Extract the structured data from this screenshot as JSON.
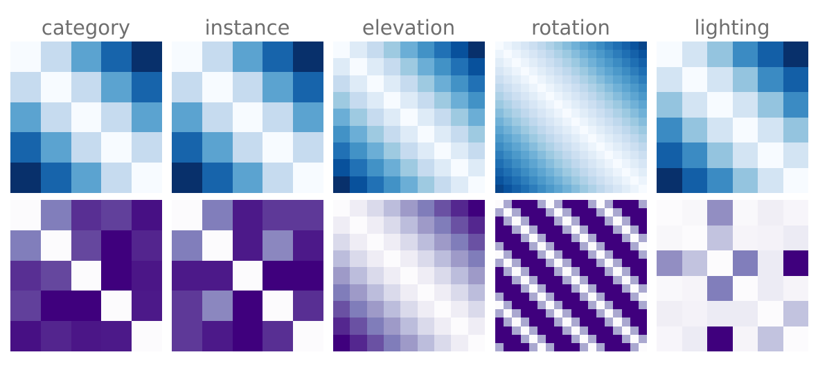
{
  "chart_data": {
    "type": "heatmap",
    "titles": [
      "category",
      "instance",
      "elevation",
      "rotation",
      "lighting"
    ],
    "colormaps": {
      "top_row": "Blues",
      "bottom_row": "Purples"
    },
    "panels": [
      {
        "row": 0,
        "col": 0,
        "title": "category",
        "colormap": "Blues",
        "size": 5,
        "matrix": [
          [
            0.0,
            0.25,
            0.55,
            0.8,
            1.0
          ],
          [
            0.25,
            0.0,
            0.25,
            0.55,
            0.8
          ],
          [
            0.55,
            0.25,
            0.0,
            0.25,
            0.55
          ],
          [
            0.8,
            0.55,
            0.25,
            0.0,
            0.25
          ],
          [
            1.0,
            0.8,
            0.55,
            0.25,
            0.0
          ]
        ]
      },
      {
        "row": 0,
        "col": 1,
        "title": "instance",
        "colormap": "Blues",
        "size": 5,
        "matrix": [
          [
            0.0,
            0.25,
            0.55,
            0.8,
            1.0
          ],
          [
            0.25,
            0.0,
            0.25,
            0.55,
            0.8
          ],
          [
            0.55,
            0.25,
            0.0,
            0.25,
            0.55
          ],
          [
            0.8,
            0.55,
            0.25,
            0.0,
            0.25
          ],
          [
            1.0,
            0.8,
            0.55,
            0.25,
            0.0
          ]
        ]
      },
      {
        "row": 0,
        "col": 2,
        "title": "elevation",
        "colormap": "Blues",
        "size": 9,
        "pattern": "abs_diff_scaled",
        "scale": 1.0
      },
      {
        "row": 0,
        "col": 3,
        "title": "rotation",
        "colormap": "Blues",
        "size": 18,
        "pattern": "abs_diff_scaled",
        "scale": 0.92
      },
      {
        "row": 0,
        "col": 4,
        "title": "lighting",
        "colormap": "Blues",
        "size": 6,
        "matrix": [
          [
            0.0,
            0.18,
            0.4,
            0.65,
            0.82,
            1.0
          ],
          [
            0.18,
            0.0,
            0.18,
            0.4,
            0.65,
            0.82
          ],
          [
            0.4,
            0.18,
            0.0,
            0.18,
            0.4,
            0.65
          ],
          [
            0.65,
            0.4,
            0.18,
            0.0,
            0.18,
            0.4
          ],
          [
            0.82,
            0.65,
            0.4,
            0.18,
            0.0,
            0.18
          ],
          [
            1.0,
            0.82,
            0.65,
            0.4,
            0.18,
            0.0
          ]
        ]
      },
      {
        "row": 1,
        "col": 0,
        "title": "category",
        "colormap": "Purples",
        "size": 5,
        "matrix": [
          [
            0.0,
            0.62,
            0.85,
            0.8,
            0.95
          ],
          [
            0.62,
            0.0,
            0.78,
            1.0,
            0.88
          ],
          [
            0.85,
            0.78,
            0.0,
            1.0,
            0.93
          ],
          [
            0.8,
            1.0,
            1.0,
            0.0,
            0.92
          ],
          [
            0.95,
            0.88,
            0.93,
            0.92,
            0.0
          ]
        ]
      },
      {
        "row": 1,
        "col": 1,
        "title": "instance",
        "colormap": "Purples",
        "size": 5,
        "matrix": [
          [
            0.0,
            0.62,
            0.92,
            0.82,
            0.82
          ],
          [
            0.62,
            0.0,
            0.92,
            0.58,
            0.92
          ],
          [
            0.92,
            0.92,
            0.0,
            1.0,
            1.0
          ],
          [
            0.82,
            0.58,
            1.0,
            0.0,
            0.85
          ],
          [
            0.82,
            0.92,
            1.0,
            0.85,
            0.0
          ]
        ]
      },
      {
        "row": 1,
        "col": 2,
        "title": "elevation",
        "colormap": "Purples",
        "size": 9,
        "pattern": "abs_diff_scaled",
        "scale": 1.0
      },
      {
        "row": 1,
        "col": 3,
        "title": "rotation",
        "colormap": "Purples",
        "size": 18,
        "pattern": "periodic_band",
        "period": 6
      },
      {
        "row": 1,
        "col": 4,
        "title": "lighting",
        "colormap": "Purples",
        "size": 6,
        "matrix": [
          [
            0.0,
            0.04,
            0.55,
            0.03,
            0.12,
            0.05
          ],
          [
            0.04,
            0.0,
            0.35,
            0.06,
            0.08,
            0.14
          ],
          [
            0.55,
            0.35,
            0.0,
            0.62,
            0.14,
            1.0
          ],
          [
            0.03,
            0.06,
            0.62,
            0.0,
            0.14,
            0.06
          ],
          [
            0.12,
            0.08,
            0.14,
            0.14,
            0.0,
            0.35
          ],
          [
            0.05,
            0.14,
            1.0,
            0.06,
            0.35,
            0.0
          ]
        ]
      }
    ]
  }
}
